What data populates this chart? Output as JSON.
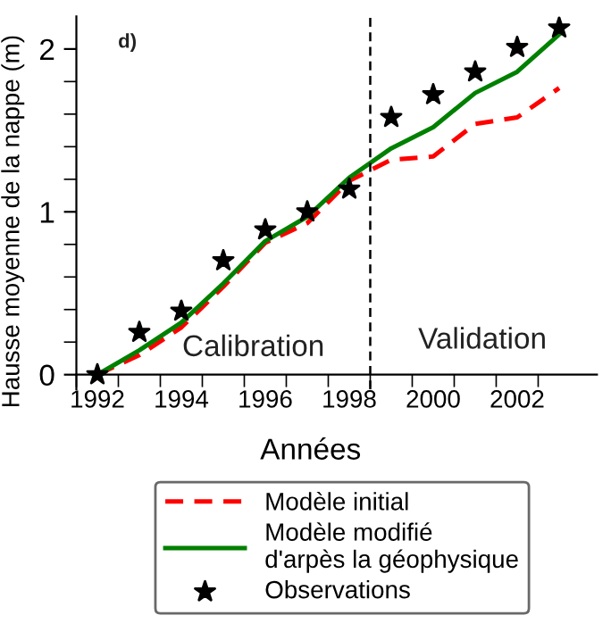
{
  "chart_data": {
    "type": "line",
    "xlabel": "Années",
    "ylabel": "Hausse moyenne de la nappe (m)",
    "x": [
      1992,
      1993,
      1994,
      1995,
      1996,
      1997,
      1998,
      1999,
      2000,
      2001,
      2002,
      2003
    ],
    "series": [
      {
        "name": "Modèle initial",
        "color": "#ff0000",
        "line_style": "dashed",
        "marker": "none",
        "values": [
          0,
          0.12,
          0.29,
          0.54,
          0.81,
          0.93,
          1.19,
          1.32,
          1.34,
          1.54,
          1.58,
          1.76
        ]
      },
      {
        "name": "Modèle modifié\nd'arpès la géophysique",
        "color": "#008000",
        "line_style": "solid",
        "marker": "none",
        "values": [
          0,
          0.15,
          0.32,
          0.56,
          0.82,
          0.97,
          1.21,
          1.39,
          1.52,
          1.73,
          1.86,
          2.09
        ]
      },
      {
        "name": "Observations",
        "type": "scatter",
        "color": "#000000",
        "marker": "star",
        "values": [
          0,
          0.26,
          0.39,
          0.7,
          0.89,
          1.0,
          1.14,
          1.58,
          1.72,
          1.86,
          2.01,
          2.13
        ]
      }
    ],
    "xlim": [
      1991.5,
      2003.9
    ],
    "ylim": [
      -0.09,
      2.2
    ],
    "xticks": [
      {
        "value": 1991.5,
        "label": null
      },
      1992,
      {
        "value": 1992.5,
        "label": null
      },
      {
        "value": 1993.5,
        "label": null
      },
      1994,
      {
        "value": 1994.5,
        "label": null
      },
      {
        "value": 1995.5,
        "label": null
      },
      1996,
      {
        "value": 1996.5,
        "label": null
      },
      {
        "value": 1997.5,
        "label": null
      },
      1998,
      {
        "value": 1998.5,
        "label": null
      },
      {
        "value": 1999.5,
        "label": null
      },
      2000,
      {
        "value": 2000.5,
        "label": null
      },
      {
        "value": 2001.5,
        "label": null
      },
      2002,
      {
        "value": 2002.5,
        "label": null
      }
    ],
    "yticks": [
      0,
      {
        "value": 0.2,
        "label": null
      },
      {
        "value": 0.4,
        "label": null
      },
      {
        "value": 0.6,
        "label": null
      },
      {
        "value": 0.8,
        "label": null
      },
      1,
      {
        "value": 1.2,
        "label": null
      },
      {
        "value": 1.4,
        "label": null
      },
      {
        "value": 1.6,
        "label": null
      },
      {
        "value": 1.8,
        "label": null
      },
      2
    ],
    "ref_lines": [
      {
        "axis": "x",
        "value": 1998.5,
        "color": "#000000",
        "line_style": "dashed"
      }
    ],
    "annotations": [
      "d)",
      "Calibration",
      "Validation"
    ],
    "grid": false,
    "legend": "bottom"
  }
}
